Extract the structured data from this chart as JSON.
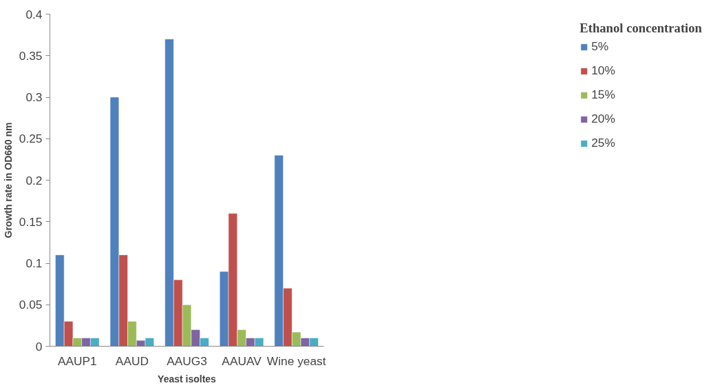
{
  "chart_data": {
    "type": "bar",
    "xlabel": "Yeast isoltes",
    "ylabel": "Growth rate in OD660 nm",
    "legend_title": "Ethanol concentration",
    "categories": [
      "AAUP1",
      "AAUD",
      "AAUG3",
      "AAUAV",
      "Wine yeast"
    ],
    "series": [
      {
        "name": "5%",
        "color": "#4f81bd",
        "values": [
          0.11,
          0.3,
          0.37,
          0.09,
          0.23
        ]
      },
      {
        "name": "10%",
        "color": "#c0504d",
        "values": [
          0.03,
          0.11,
          0.08,
          0.16,
          0.07
        ]
      },
      {
        "name": "15%",
        "color": "#9bbb59",
        "values": [
          0.01,
          0.03,
          0.05,
          0.02,
          0.017
        ]
      },
      {
        "name": "20%",
        "color": "#8064a2",
        "values": [
          0.01,
          0.007,
          0.02,
          0.01,
          0.01
        ]
      },
      {
        "name": "25%",
        "color": "#4bacc6",
        "values": [
          0.01,
          0.01,
          0.01,
          0.01,
          0.01
        ]
      }
    ],
    "ylim": [
      0,
      0.4
    ],
    "yticks": [
      0,
      0.05,
      0.1,
      0.15,
      0.2,
      0.25,
      0.3,
      0.35,
      0.4
    ],
    "grid": false,
    "legend": "right"
  }
}
